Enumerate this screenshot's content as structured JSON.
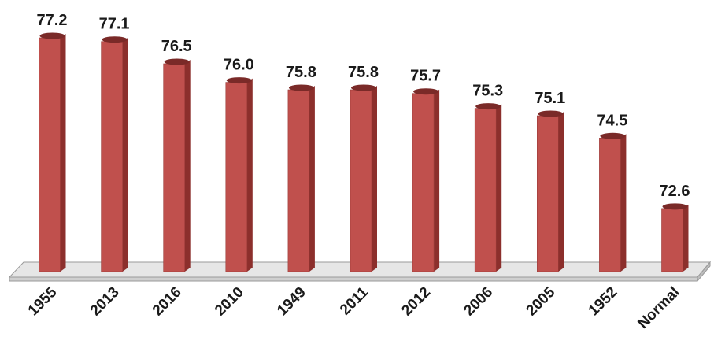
{
  "chart_data": {
    "type": "bar",
    "categories": [
      "1955",
      "2013",
      "2016",
      "2010",
      "1949",
      "2011",
      "2012",
      "2006",
      "2005",
      "1952",
      "Normal"
    ],
    "values": [
      77.2,
      77.1,
      76.5,
      76.0,
      75.8,
      75.8,
      75.7,
      75.3,
      75.1,
      74.5,
      72.6
    ],
    "value_labels": [
      "77.2",
      "77.1",
      "76.5",
      "76.0",
      "75.8",
      "75.8",
      "75.7",
      "75.3",
      "75.1",
      "74.5",
      "72.6"
    ],
    "ylim": [
      70.9,
      77.2
    ],
    "grid": false,
    "legend": "none",
    "style": "3d-cylinder-bars",
    "colors": {
      "bar_front": "#c0504d",
      "bar_side": "#8c2f2c",
      "bar_top": "#7a2a28",
      "floor": "#e6e6e6",
      "floor_edge": "#9a9a9a"
    }
  }
}
